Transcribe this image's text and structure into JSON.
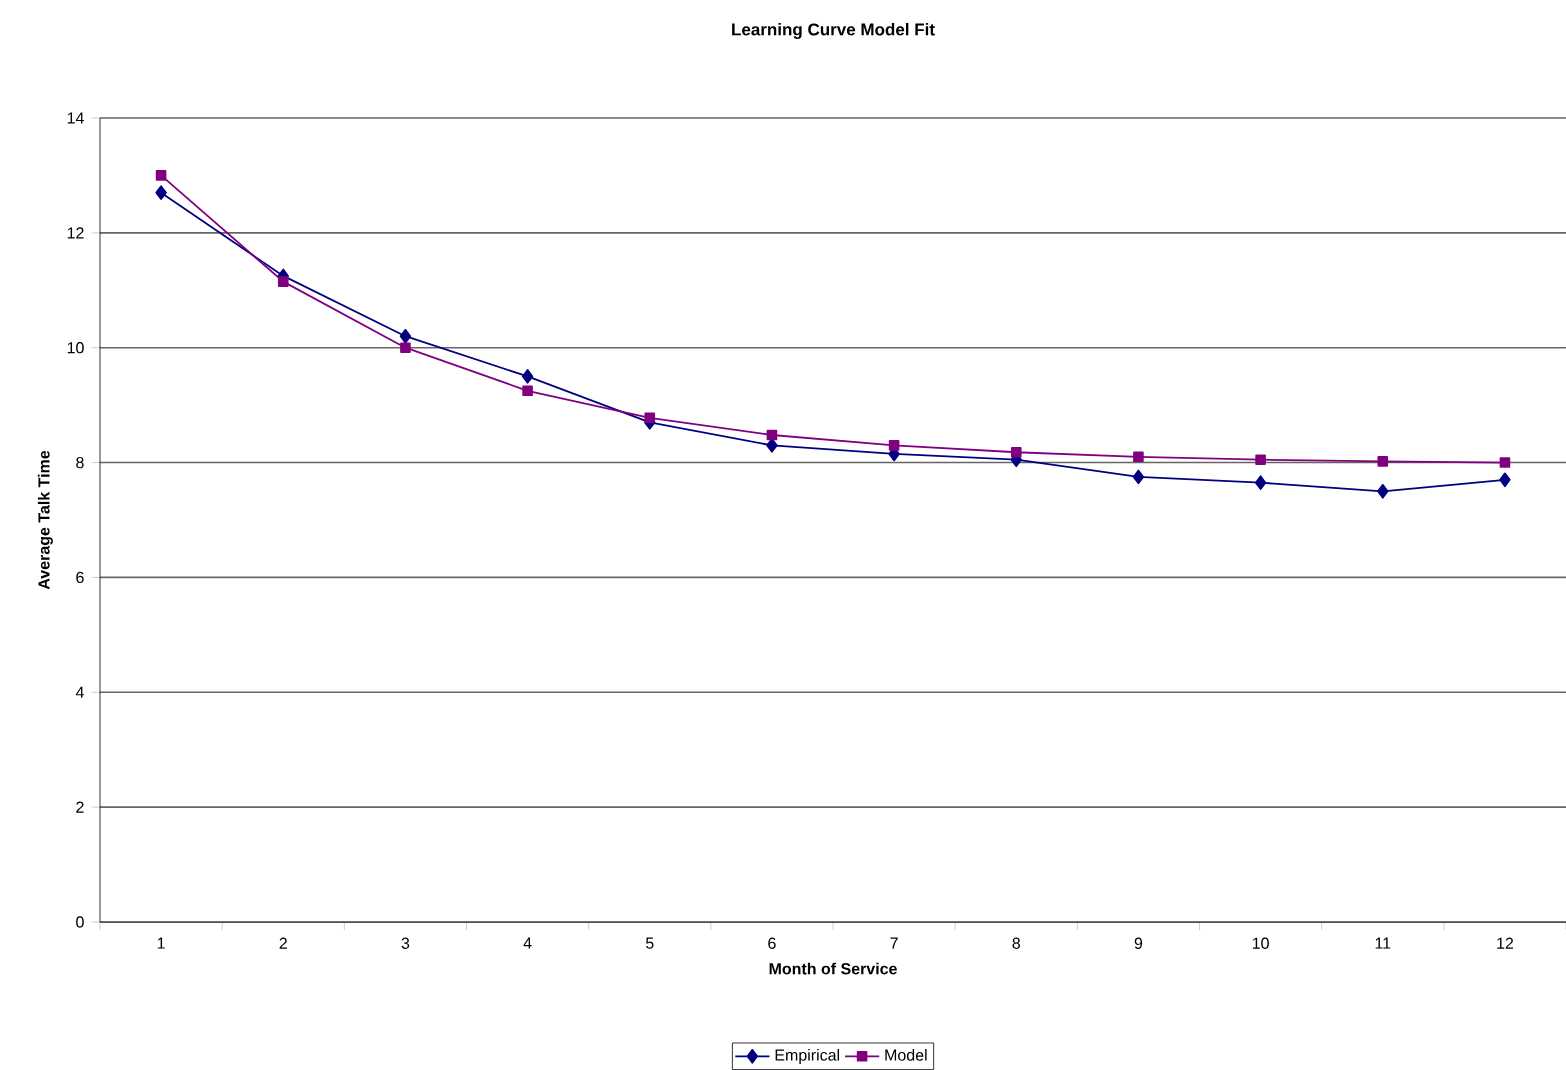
{
  "chart_data": {
    "type": "line",
    "title": "Learning Curve Model Fit",
    "xlabel": "Month of Service",
    "ylabel": "Average Talk Time",
    "categories": [
      "1",
      "2",
      "3",
      "4",
      "5",
      "6",
      "7",
      "8",
      "9",
      "10",
      "11",
      "12"
    ],
    "series": [
      {
        "name": "Empirical",
        "color": "#000080",
        "marker": "diamond",
        "values": [
          12.7,
          11.25,
          10.2,
          9.5,
          8.7,
          8.3,
          8.15,
          8.05,
          7.75,
          7.65,
          7.5,
          7.7
        ]
      },
      {
        "name": "Model",
        "color": "#800080",
        "marker": "square",
        "values": [
          13.0,
          11.15,
          10.0,
          9.25,
          8.78,
          8.48,
          8.3,
          8.18,
          8.1,
          8.05,
          8.02,
          8.0
        ]
      }
    ],
    "ylim": [
      0,
      14
    ],
    "yticks": [
      0,
      2,
      4,
      6,
      8,
      10,
      12,
      14
    ],
    "grid": "y",
    "legend": "bottom",
    "line_style": "solid"
  }
}
